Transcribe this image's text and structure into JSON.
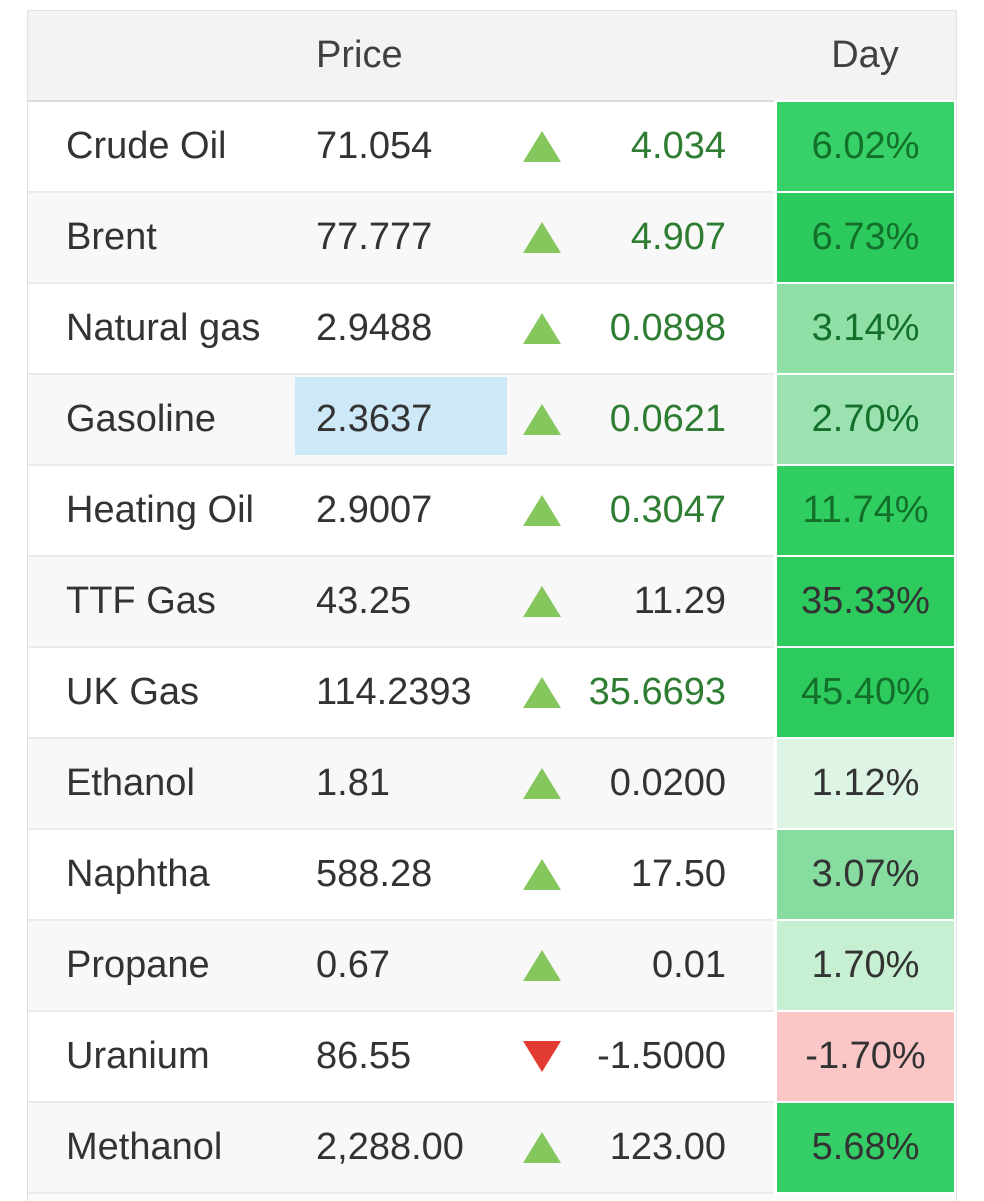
{
  "table": {
    "headers": {
      "price": "Price",
      "day": "Day"
    },
    "rows": [
      {
        "name": "Crude Oil",
        "price": "71.054",
        "dir": "up",
        "change": "4.034",
        "fresh": true,
        "day": "6.02%",
        "day_bg": "#38d069",
        "price_flash": false
      },
      {
        "name": "Brent",
        "price": "77.777",
        "dir": "up",
        "change": "4.907",
        "fresh": true,
        "day": "6.73%",
        "day_bg": "#2cca5c",
        "price_flash": false
      },
      {
        "name": "Natural gas",
        "price": "2.9488",
        "dir": "up",
        "change": "0.0898",
        "fresh": true,
        "day": "3.14%",
        "day_bg": "#8fdfa6",
        "price_flash": false
      },
      {
        "name": "Gasoline",
        "price": "2.3637",
        "dir": "up",
        "change": "0.0621",
        "fresh": true,
        "day": "2.70%",
        "day_bg": "#9be2b0",
        "price_flash": true
      },
      {
        "name": "Heating Oil",
        "price": "2.9007",
        "dir": "up",
        "change": "0.3047",
        "fresh": true,
        "day": "11.74%",
        "day_bg": "#30cd61",
        "price_flash": false
      },
      {
        "name": "TTF Gas",
        "price": "43.25",
        "dir": "up",
        "change": "11.29",
        "fresh": false,
        "day": "35.33%",
        "day_bg": "#2dcb5e",
        "price_flash": false
      },
      {
        "name": "UK Gas",
        "price": "114.2393",
        "dir": "up",
        "change": "35.6693",
        "fresh": true,
        "day": "45.40%",
        "day_bg": "#2dcb5e",
        "price_flash": false
      },
      {
        "name": "Ethanol",
        "price": "1.81",
        "dir": "up",
        "change": "0.0200",
        "fresh": false,
        "day": "1.12%",
        "day_bg": "#def4e4",
        "price_flash": false
      },
      {
        "name": "Naphtha",
        "price": "588.28",
        "dir": "up",
        "change": "17.50",
        "fresh": false,
        "day": "3.07%",
        "day_bg": "#86dd9f",
        "price_flash": false
      },
      {
        "name": "Propane",
        "price": "0.67",
        "dir": "up",
        "change": "0.01",
        "fresh": false,
        "day": "1.70%",
        "day_bg": "#c7efd2",
        "price_flash": false
      },
      {
        "name": "Uranium",
        "price": "86.55",
        "dir": "down",
        "change": "-1.5000",
        "fresh": false,
        "day": "-1.70%",
        "day_bg": "#fbc6c6",
        "price_flash": false
      },
      {
        "name": "Methanol",
        "price": "2,288.00",
        "dir": "up",
        "change": "123.00",
        "fresh": false,
        "day": "5.68%",
        "day_bg": "#36cf67",
        "price_flash": false
      }
    ]
  },
  "colors": {
    "triangle_up": "#85c75c",
    "triangle_down": "#e23b31",
    "flash_highlight": "#cde8f6",
    "header_bg": "#f3f3f4",
    "fresh_text": "#2e7d32",
    "stale_text": "#333333"
  }
}
